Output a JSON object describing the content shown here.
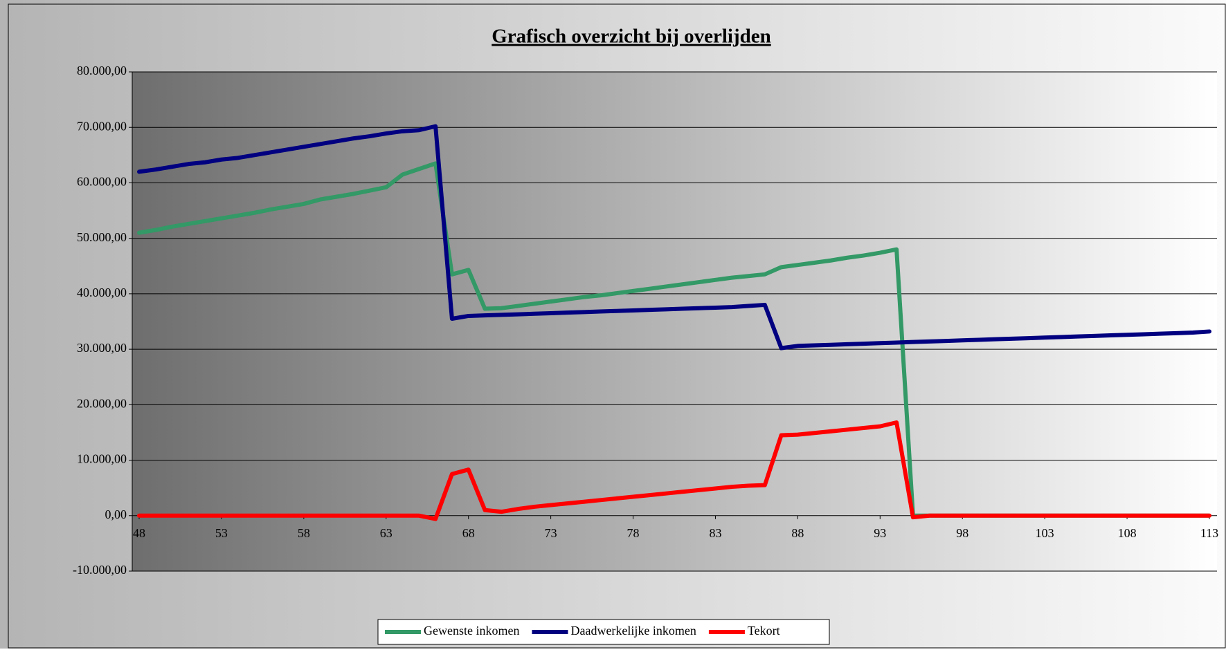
{
  "chart_data": {
    "type": "line",
    "title": "Grafisch overzicht bij overlijden",
    "x": [
      48,
      49,
      50,
      51,
      52,
      53,
      54,
      55,
      56,
      57,
      58,
      59,
      60,
      61,
      62,
      63,
      64,
      65,
      66,
      67,
      68,
      69,
      70,
      71,
      72,
      73,
      74,
      75,
      76,
      77,
      78,
      79,
      80,
      81,
      82,
      83,
      84,
      85,
      86,
      87,
      88,
      89,
      90,
      91,
      92,
      93,
      94,
      95,
      96,
      97,
      98,
      99,
      100,
      101,
      102,
      103,
      104,
      105,
      106,
      107,
      108,
      109,
      110,
      111,
      112,
      113
    ],
    "series": [
      {
        "name": "Gewenste inkomen",
        "color": "#339966",
        "values": [
          51000,
          51500,
          52100,
          52600,
          53100,
          53600,
          54100,
          54600,
          55200,
          55700,
          56200,
          57000,
          57500,
          58000,
          58600,
          59200,
          61500,
          62500,
          63500,
          43500,
          44300,
          37300,
          37400,
          37800,
          38200,
          38600,
          39000,
          39400,
          39700,
          40100,
          40500,
          40900,
          41300,
          41700,
          42100,
          42500,
          42900,
          43200,
          43500,
          44800,
          45200,
          45600,
          46000,
          46500,
          46900,
          47400,
          48000,
          0,
          0,
          0,
          0,
          0,
          0,
          0,
          0,
          0,
          0,
          0,
          0,
          0,
          0,
          0,
          0,
          0,
          0,
          0
        ]
      },
      {
        "name": "Daadwerkelijke inkomen",
        "color": "#000080",
        "values": [
          62000,
          62400,
          62900,
          63400,
          63700,
          64200,
          64500,
          65000,
          65500,
          66000,
          66500,
          67000,
          67500,
          68000,
          68400,
          68900,
          69300,
          69500,
          70200,
          35500,
          36000,
          36100,
          36200,
          36300,
          36400,
          36500,
          36600,
          36700,
          36800,
          36900,
          37000,
          37100,
          37200,
          37300,
          37400,
          37500,
          37600,
          37800,
          38000,
          30200,
          30600,
          30700,
          30800,
          30900,
          31000,
          31100,
          31200,
          31300,
          31400,
          31500,
          31600,
          31700,
          31800,
          31900,
          32000,
          32100,
          32200,
          32300,
          32400,
          32500,
          32600,
          32700,
          32800,
          32900,
          33000,
          33200
        ]
      },
      {
        "name": "Tekort",
        "color": "#ff0000",
        "values": [
          0,
          0,
          0,
          0,
          0,
          0,
          0,
          0,
          0,
          0,
          0,
          0,
          0,
          0,
          0,
          0,
          0,
          0,
          -600,
          7500,
          8300,
          1000,
          700,
          1200,
          1600,
          1900,
          2200,
          2500,
          2800,
          3100,
          3400,
          3700,
          4000,
          4300,
          4600,
          4900,
          5200,
          5400,
          5500,
          14500,
          14600,
          14900,
          15200,
          15500,
          15800,
          16100,
          16800,
          -300,
          0,
          0,
          0,
          0,
          0,
          0,
          0,
          0,
          0,
          0,
          0,
          0,
          0,
          0,
          0,
          0,
          0,
          0
        ]
      }
    ],
    "xlim": [
      48,
      113
    ],
    "xticks": [
      48,
      53,
      58,
      63,
      68,
      73,
      78,
      83,
      88,
      93,
      98,
      103,
      108,
      113
    ],
    "ylim": [
      -10000,
      80000
    ],
    "yticks": [
      {
        "value": -10000,
        "label": "-10.000,00"
      },
      {
        "value": 0,
        "label": "0,00"
      },
      {
        "value": 10000,
        "label": "10.000,00"
      },
      {
        "value": 20000,
        "label": "20.000,00"
      },
      {
        "value": 30000,
        "label": "30.000,00"
      },
      {
        "value": 40000,
        "label": "40.000,00"
      },
      {
        "value": 50000,
        "label": "50.000,00"
      },
      {
        "value": 60000,
        "label": "60.000,00"
      },
      {
        "value": 70000,
        "label": "70.000,00"
      },
      {
        "value": 80000,
        "label": "80.000,00"
      }
    ],
    "grid": true,
    "legend": "bottom"
  }
}
